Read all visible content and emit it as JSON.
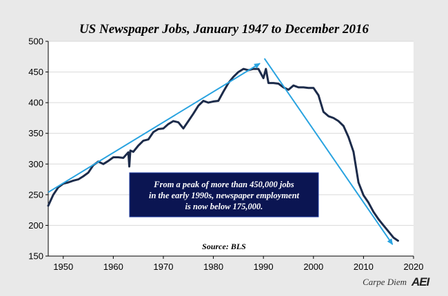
{
  "chart_data": {
    "type": "line",
    "title": "US Newspaper Jobs, January 1947 to December 2016",
    "xlabel": "",
    "ylabel": "",
    "xlim": [
      1947,
      2020
    ],
    "ylim": [
      150,
      500
    ],
    "x_ticks": [
      1950,
      1960,
      1970,
      1980,
      1990,
      2000,
      2010,
      2020
    ],
    "y_ticks": [
      150,
      200,
      250,
      300,
      350,
      400,
      450,
      500
    ],
    "grid": "horizontal",
    "colors": {
      "line": "#1c2b4a",
      "arrow": "#29a3e0",
      "box": "#0b1552"
    },
    "series": [
      {
        "name": "",
        "x": [
          1947,
          1948,
          1949,
          1950,
          1951,
          1952,
          1953,
          1954,
          1955,
          1956,
          1957,
          1958,
          1959,
          1960,
          1961,
          1962,
          1963,
          1963.2,
          1963.4,
          1964,
          1965,
          1966,
          1967,
          1968,
          1969,
          1970,
          1971,
          1972,
          1973,
          1974,
          1975,
          1976,
          1977,
          1978,
          1979,
          1980,
          1981,
          1982,
          1983,
          1984,
          1985,
          1986,
          1987,
          1988,
          1989,
          1990,
          1990.5,
          1991,
          1992,
          1993,
          1994,
          1995,
          1996,
          1997,
          1998,
          1999,
          2000,
          2001,
          2002,
          2003,
          2004,
          2005,
          2006,
          2007,
          2008,
          2009,
          2010,
          2011,
          2012,
          2013,
          2014,
          2015,
          2016,
          2016.9
        ],
        "values": [
          232,
          250,
          262,
          268,
          270,
          273,
          275,
          280,
          286,
          298,
          304,
          300,
          305,
          311,
          311,
          310,
          319,
          296,
          322,
          320,
          330,
          338,
          340,
          352,
          357,
          358,
          365,
          370,
          368,
          358,
          370,
          382,
          395,
          403,
          400,
          402,
          403,
          418,
          432,
          442,
          450,
          455,
          453,
          455,
          455,
          440,
          455,
          432,
          432,
          431,
          425,
          421,
          428,
          425,
          425,
          424,
          424,
          412,
          385,
          378,
          375,
          370,
          362,
          344,
          320,
          270,
          249,
          237,
          222,
          210,
          200,
          190,
          180,
          175
        ]
      }
    ],
    "arrows": [
      {
        "from": [
          1947,
          254
        ],
        "to": [
          1989.3,
          464
        ]
      },
      {
        "from": [
          1990.2,
          472
        ],
        "to": [
          2015.8,
          169
        ]
      }
    ],
    "annotation": "From a peak of more than 450,000 jobs in the early 1990s, newspaper employment is now below 175,000.",
    "annotation_lines": [
      "From a peak of more than 450,000 jobs",
      "in the early 1990s, newspaper employment",
      "is now below 175,000."
    ],
    "source": "Source: BLS"
  },
  "footer": {
    "brand": "Carpe Diem",
    "logo": "AEI"
  }
}
